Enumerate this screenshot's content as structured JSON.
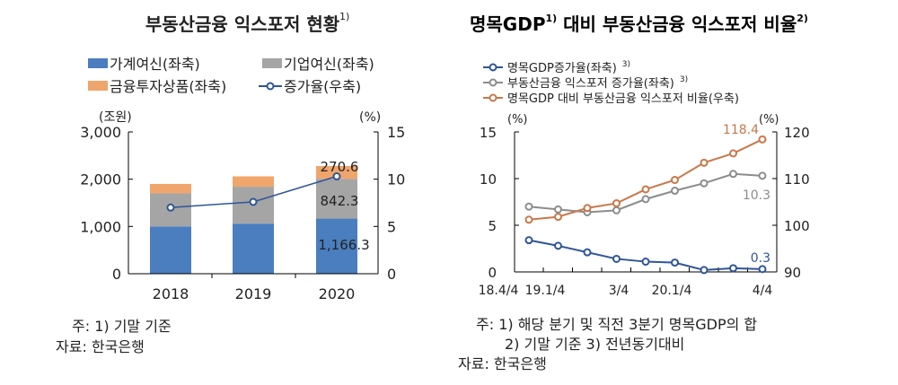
{
  "chart_data": [
    {
      "type": "bar",
      "stacked": true,
      "title": "부동산금융 익스포저 현황",
      "title_note": "1)",
      "left_unit": "(조원)",
      "right_unit": "(%)",
      "categories": [
        "2018",
        "2019",
        "2020"
      ],
      "ylim": [
        0,
        3000
      ],
      "yticks": [
        "0",
        "1,000",
        "2,000",
        "3,000"
      ],
      "y2lim": [
        0,
        15
      ],
      "y2ticks": [
        "0",
        "5",
        "10",
        "15"
      ],
      "legend": [
        "가계여신(좌축)",
        "기업여신(좌축)",
        "금융투자상품(좌축)",
        "증가율(우축)"
      ],
      "series": [
        {
          "name": "가계여신(좌축)",
          "color": "#4a7ebf",
          "values": [
            1000,
            1060,
            1166.3
          ]
        },
        {
          "name": "기업여신(좌축)",
          "color": "#a5a5a5",
          "values": [
            700,
            780,
            842.3
          ]
        },
        {
          "name": "금융투자상품(좌축)",
          "color": "#f0a56c",
          "values": [
            200,
            220,
            270.6
          ]
        },
        {
          "name": "증가율(우축)",
          "type": "line",
          "axis": "right",
          "color": "#2f5597",
          "values": [
            7.0,
            7.6,
            10.3
          ]
        }
      ],
      "labels": [
        "1,166.3",
        "842.3",
        "270.6"
      ]
    },
    {
      "type": "line",
      "title": "명목GDP",
      "title_note1": "1)",
      "title_rest": " 대비 부동산금융 익스포저 비율",
      "title_note2": "2)",
      "left_unit": "(%)",
      "right_unit": "(%)",
      "ylim": [
        0,
        15
      ],
      "yticks": [
        "0",
        "5",
        "10",
        "15"
      ],
      "y2lim": [
        90,
        120
      ],
      "y2ticks": [
        "90",
        "100",
        "110",
        "120"
      ],
      "xticklabels": [
        "18.4/4",
        "19.1/4",
        "3/4",
        "20.1/4",
        "4/4"
      ],
      "x": [
        "18.4/4",
        "19.1/4",
        "19.2/4",
        "19.3/4",
        "19.4/4",
        "20.1/4",
        "20.2/4",
        "20.3/4",
        "20.4/4"
      ],
      "series": [
        {
          "name": "명목GDP증가율(좌축)",
          "note": "3)",
          "color": "#2f5597",
          "axis": "left",
          "values": [
            3.4,
            2.8,
            2.1,
            1.4,
            1.1,
            1.0,
            0.2,
            0.4,
            0.3
          ]
        },
        {
          "name": "부동산금융 익스포저 증가율(좌축)",
          "note": "3)",
          "color": "#8c8c8c",
          "axis": "left",
          "values": [
            7.0,
            6.7,
            6.4,
            6.6,
            7.8,
            8.7,
            9.5,
            10.5,
            10.3
          ]
        },
        {
          "name": "명목GDP 대비 부동산금융 익스포저 비율(우축)",
          "color": "#c8784a",
          "axis": "right",
          "values": [
            101.2,
            101.8,
            103.7,
            104.7,
            107.7,
            109.7,
            113.4,
            115.4,
            118.4
          ]
        }
      ],
      "labels": [
        "0.3",
        "10.3",
        "118.4"
      ]
    }
  ],
  "notes": {
    "left": [
      "주: 1) 기말 기준",
      "자료: 한국은행"
    ],
    "right": [
      "주: 1) 해당 분기 및 직전 3분기 명목GDP의 합",
      "2) 기말 기준         3) 전년동기대비",
      "자료: 한국은행"
    ]
  }
}
